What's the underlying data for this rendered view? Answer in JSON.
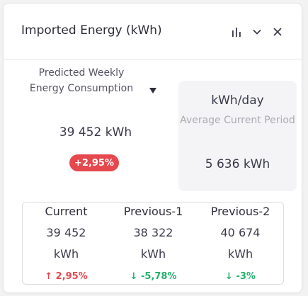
{
  "widget": {
    "title": "Imported Energy (kWh)",
    "icons": [
      "bar-chart-icon",
      "chevron-down-icon",
      "close-icon"
    ]
  },
  "predicted": {
    "label": "Predicted Weekly Energy Consumption",
    "value": "39 452 kWh",
    "badge": "+2,95%",
    "badge_color": "#e5484d"
  },
  "average": {
    "unit": "kWh/day",
    "label": "Average Current Period",
    "value": "5 636 kWh"
  },
  "periods": [
    {
      "name": "Current",
      "value": "39 452",
      "unit": "kWh",
      "arrow": "↑",
      "change": "2,95%",
      "trend": "up"
    },
    {
      "name": "Previous-1",
      "value": "38 322",
      "unit": "kWh",
      "arrow": "↓",
      "change": "-5,78%",
      "trend": "down"
    },
    {
      "name": "Previous-2",
      "value": "40 674",
      "unit": "kWh",
      "arrow": "↓",
      "change": "-3%",
      "trend": "down"
    }
  ],
  "colors": {
    "up": "#e5484d",
    "down": "#22b06b"
  }
}
